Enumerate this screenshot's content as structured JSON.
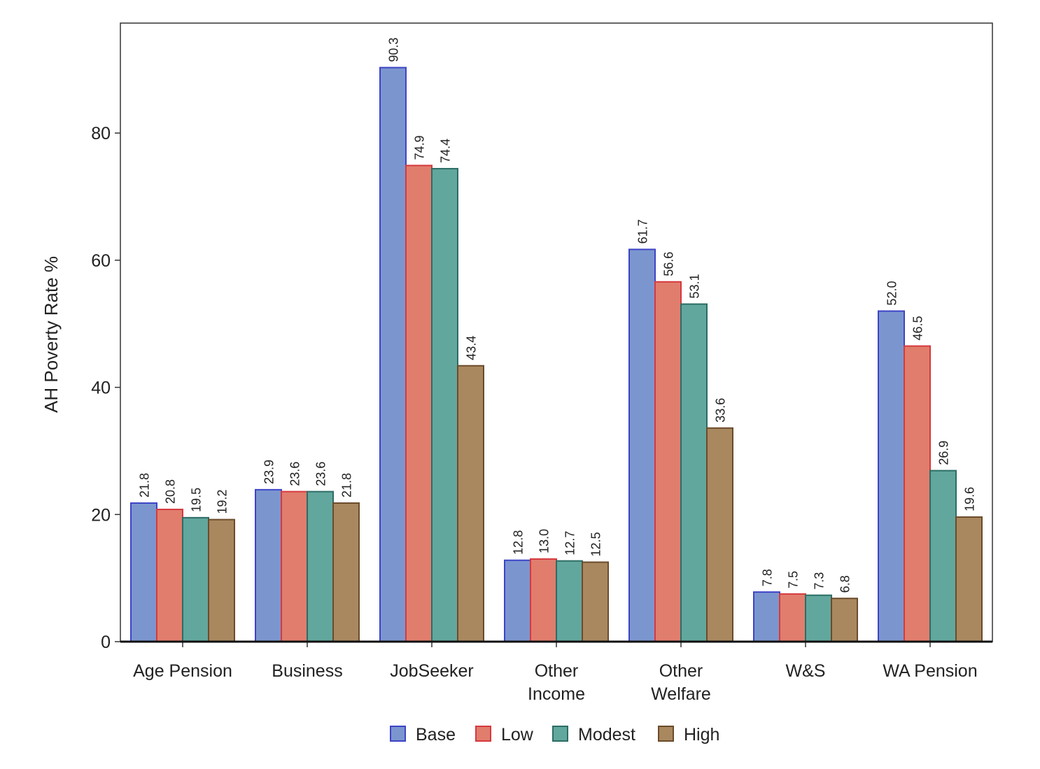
{
  "chart_data": {
    "type": "bar",
    "title": "",
    "xlabel": "",
    "ylabel": "AH Poverty Rate %",
    "ylim": [
      0,
      97.3
    ],
    "yticks": [
      0,
      20,
      40,
      60,
      80
    ],
    "grid": false,
    "legend_position": "bottom-center",
    "categories": [
      [
        "Age Pension"
      ],
      [
        "Business"
      ],
      [
        "JobSeeker"
      ],
      [
        "Other",
        "Income"
      ],
      [
        "Other",
        "Welfare"
      ],
      [
        "W&S"
      ],
      [
        "WA Pension"
      ]
    ],
    "series": [
      {
        "name": "Base",
        "fill": "#7b96cf",
        "stroke": "#3d44c6",
        "values": [
          21.8,
          23.9,
          90.3,
          12.8,
          61.7,
          7.8,
          52.0
        ]
      },
      {
        "name": "Low",
        "fill": "#e17d6d",
        "stroke": "#d53a3f",
        "values": [
          20.8,
          23.6,
          74.9,
          13.0,
          56.6,
          7.5,
          46.5
        ]
      },
      {
        "name": "Modest",
        "fill": "#62a79d",
        "stroke": "#2c6d65",
        "values": [
          19.5,
          23.6,
          74.4,
          12.7,
          53.1,
          7.3,
          26.9
        ]
      },
      {
        "name": "High",
        "fill": "#a9885f",
        "stroke": "#6b4b2b",
        "values": [
          19.2,
          21.8,
          43.4,
          12.5,
          33.6,
          6.8,
          19.6
        ]
      }
    ]
  }
}
